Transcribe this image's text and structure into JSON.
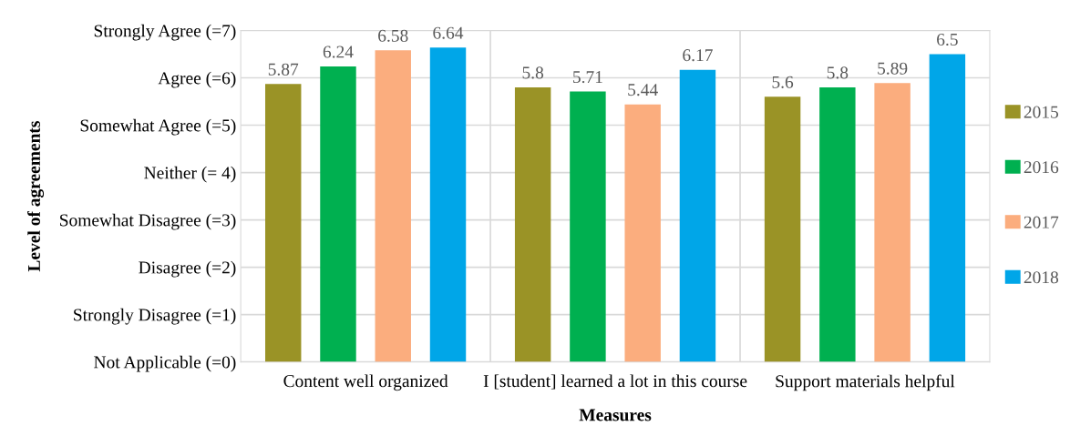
{
  "chart_data": {
    "type": "bar",
    "xlabel": "Measures",
    "ylabel": "Level of agreements",
    "categories": [
      "Content well organized",
      "I [student] learned a lot in this course",
      "Support materials helpful"
    ],
    "series": [
      {
        "name": "2015",
        "color": "#9a9326",
        "values": [
          5.87,
          5.8,
          5.6
        ]
      },
      {
        "name": "2016",
        "color": "#00b050",
        "values": [
          6.24,
          5.71,
          5.8
        ]
      },
      {
        "name": "2017",
        "color": "#fbad7e",
        "values": [
          6.58,
          5.44,
          5.89
        ]
      },
      {
        "name": "2018",
        "color": "#00a6e8",
        "values": [
          6.64,
          6.17,
          6.5
        ]
      }
    ],
    "ylim": [
      0,
      7
    ],
    "yticks": [
      {
        "value": 0,
        "label": "Not Applicable (=0)"
      },
      {
        "value": 1,
        "label": "Strongly Disagree (=1)"
      },
      {
        "value": 2,
        "label": "Disagree (=2)"
      },
      {
        "value": 3,
        "label": "Somewhat Disagree (=3)"
      },
      {
        "value": 4,
        "label": "Neither (= 4)"
      },
      {
        "value": 5,
        "label": "Somewhat Agree (=5)"
      },
      {
        "value": 6,
        "label": "Agree (=6)"
      },
      {
        "value": 7,
        "label": "Strongly Agree (=7)"
      }
    ],
    "grid": true,
    "legend": "right",
    "data_labels": true
  }
}
